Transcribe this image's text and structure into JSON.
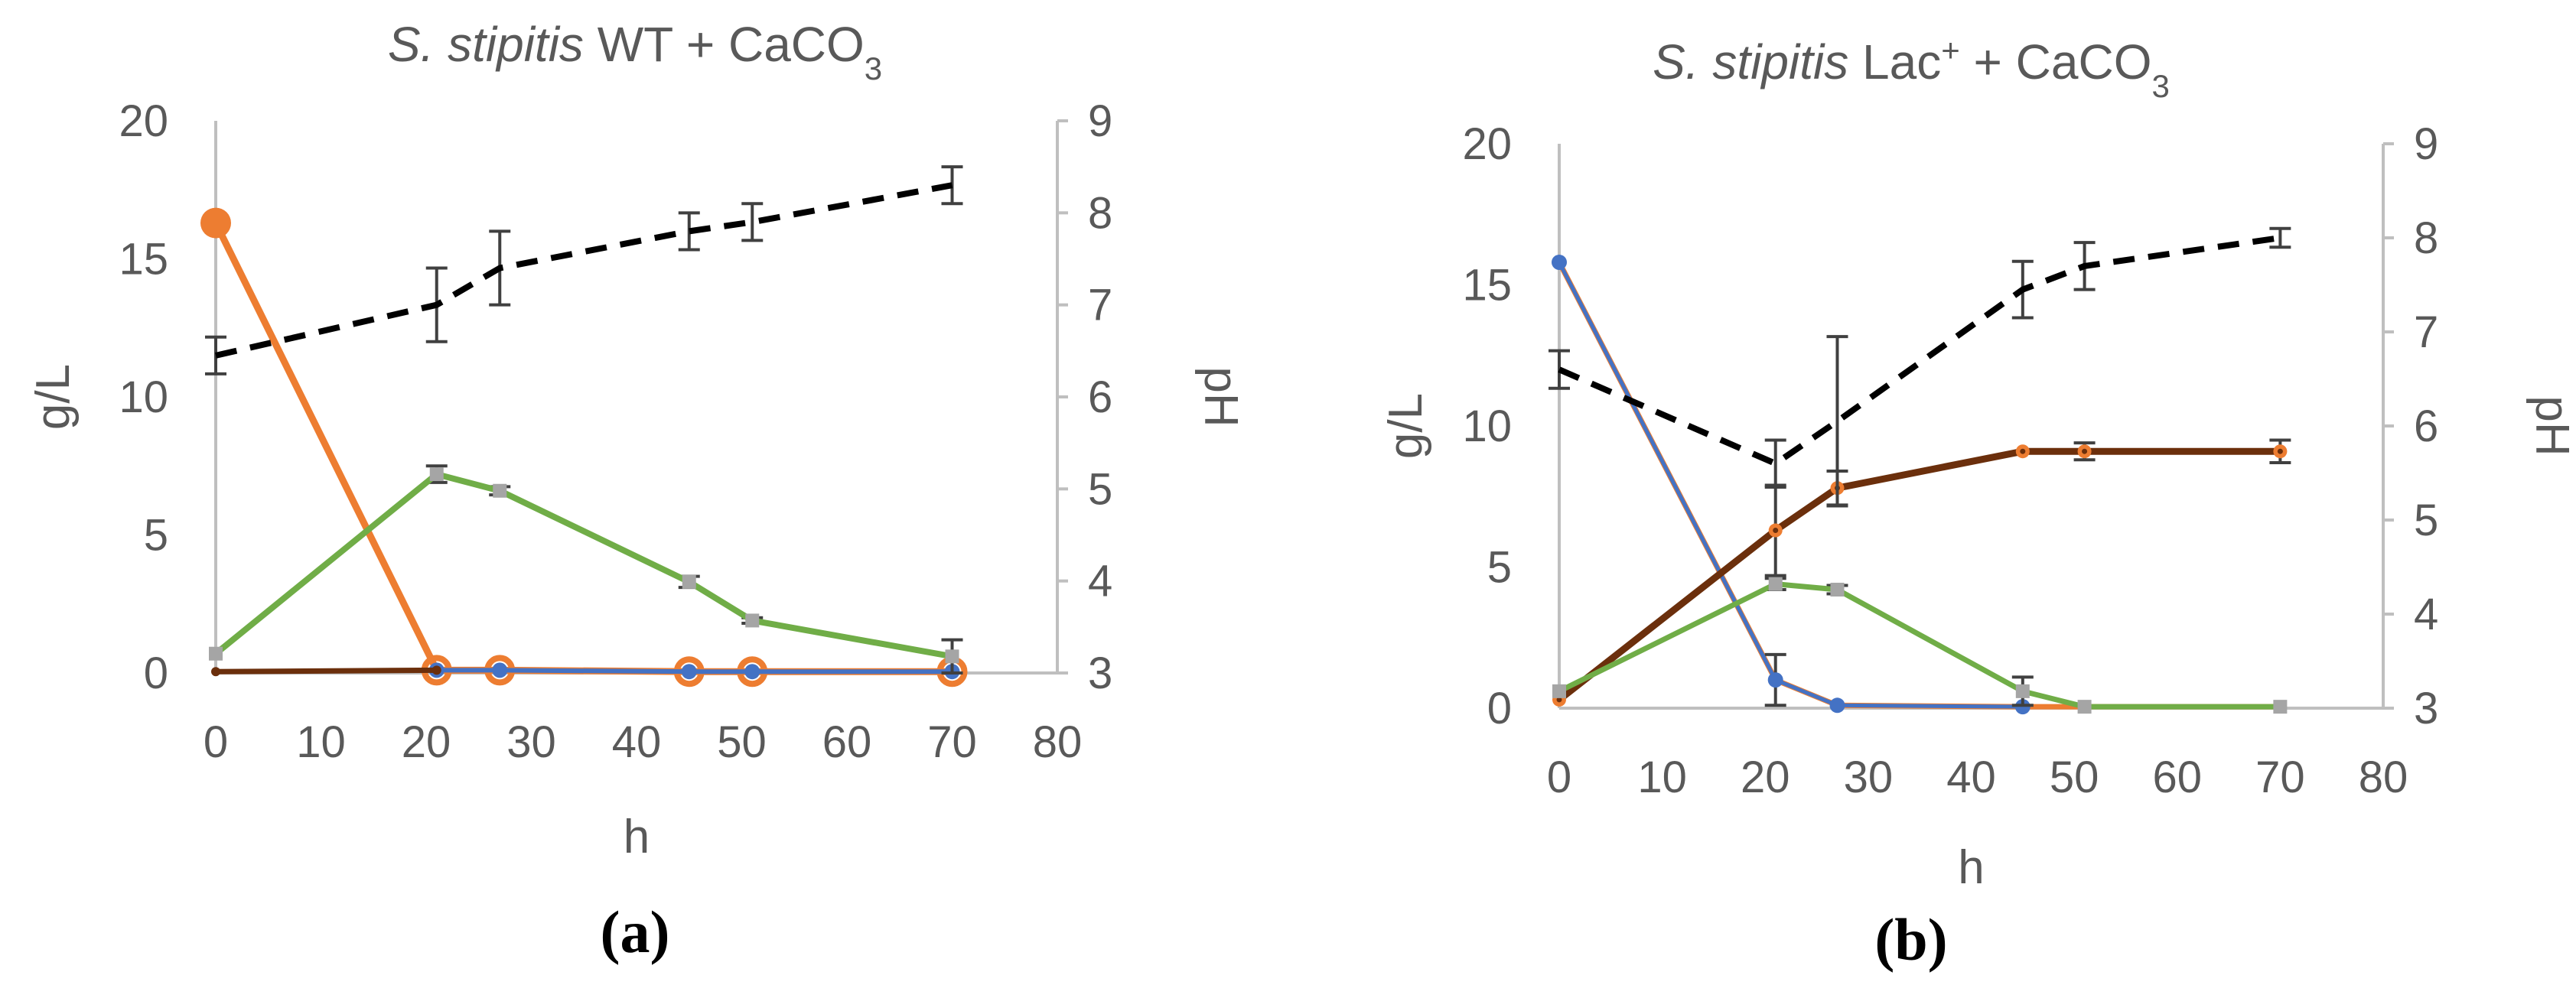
{
  "chart_data": [
    {
      "type": "line",
      "panel_label": "(a)",
      "title": {
        "italic": "S. stipitis",
        "rest": " WT + CaCO",
        "subscript": "3"
      },
      "xlabel": "h",
      "ylabel": "g/L",
      "y2label": "pH",
      "xlim": [
        0,
        80
      ],
      "ylim": [
        0,
        20
      ],
      "y2lim": [
        3,
        9
      ],
      "xticks": [
        "0",
        "10",
        "20",
        "30",
        "40",
        "50",
        "60",
        "70",
        "80"
      ],
      "yticks": [
        "0",
        "5",
        "10",
        "15",
        "20"
      ],
      "y2ticks": [
        "3",
        "4",
        "5",
        "6",
        "7",
        "8",
        "9"
      ],
      "series": [
        {
          "name": "orange",
          "axis": "left",
          "color": "#ED7D31",
          "width": 9,
          "marker": "big-circle",
          "x": [
            0,
            21,
            27,
            45,
            51,
            70
          ],
          "y": [
            16.3,
            0.1,
            0.1,
            0.05,
            0.05,
            0.05
          ]
        },
        {
          "name": "blue",
          "axis": "left",
          "color": "#4472C4",
          "width": 6,
          "marker": "circle",
          "x": [
            21,
            27,
            45,
            51,
            70
          ],
          "y": [
            0.1,
            0.1,
            0.05,
            0.05,
            0.05
          ]
        },
        {
          "name": "brown",
          "axis": "left",
          "color": "#6B2F0C",
          "width": 7,
          "marker": "small-circle",
          "x": [
            0,
            21
          ],
          "y": [
            0.05,
            0.1
          ]
        },
        {
          "name": "green",
          "axis": "left",
          "color": "#70AD47",
          "width": 8,
          "marker": "square",
          "x": [
            0,
            21,
            27,
            45,
            51,
            70
          ],
          "y": [
            0.7,
            7.2,
            6.6,
            3.3,
            1.9,
            0.6
          ],
          "err": [
            0,
            0.3,
            0.15,
            0.2,
            0.1,
            0.6
          ]
        },
        {
          "name": "pH",
          "axis": "right",
          "color": "#000000",
          "width": 8,
          "dash": "28,18",
          "marker": "none",
          "x": [
            0,
            21,
            27,
            45,
            51,
            70
          ],
          "y": [
            6.45,
            7.0,
            7.4,
            7.8,
            7.9,
            8.3
          ],
          "err": [
            0.2,
            0.4,
            0.4,
            0.2,
            0.2,
            0.2
          ]
        }
      ]
    },
    {
      "type": "line",
      "panel_label": "(b)",
      "title": {
        "italic": "S. stipitis",
        "rest": " Lac",
        "superscript": "+",
        "rest2": " + CaCO",
        "subscript": "3"
      },
      "xlabel": "h",
      "ylabel": "g/L",
      "y2label": "pH",
      "xlim": [
        0,
        80
      ],
      "ylim": [
        0,
        20
      ],
      "y2lim": [
        3,
        9
      ],
      "xticks": [
        "0",
        "10",
        "20",
        "30",
        "40",
        "50",
        "60",
        "70",
        "80"
      ],
      "yticks": [
        "0",
        "5",
        "10",
        "15",
        "20"
      ],
      "y2ticks": [
        "3",
        "4",
        "5",
        "6",
        "7",
        "8",
        "9"
      ],
      "series": [
        {
          "name": "orange",
          "axis": "left",
          "color": "#ED7D31",
          "width": 7,
          "marker": "none",
          "x": [
            0,
            21,
            27,
            45,
            51,
            70
          ],
          "y": [
            15.8,
            1.0,
            0.1,
            0.05,
            0.05,
            0.05
          ]
        },
        {
          "name": "blue",
          "axis": "left",
          "color": "#4472C4",
          "width": 5,
          "marker": "circle",
          "x": [
            0,
            21,
            27,
            45
          ],
          "y": [
            15.8,
            1.0,
            0.1,
            0.05
          ],
          "err": [
            0,
            0.9,
            0,
            0
          ]
        },
        {
          "name": "brown",
          "axis": "left",
          "color": "#6B2F0C",
          "width": 9,
          "marker": "orange-dot",
          "x": [
            0,
            21,
            27,
            45,
            51,
            70
          ],
          "y": [
            0.3,
            6.3,
            7.8,
            9.1,
            9.1,
            9.1
          ],
          "err": [
            0,
            1.6,
            0.6,
            0,
            0.3,
            0.4
          ]
        },
        {
          "name": "green",
          "axis": "left",
          "color": "#70AD47",
          "width": 7,
          "marker": "square",
          "x": [
            0,
            21,
            27,
            45,
            51,
            70
          ],
          "y": [
            0.6,
            4.4,
            4.2,
            0.6,
            0.05,
            0.05
          ],
          "err": [
            0,
            0.2,
            0.15,
            0.5,
            0,
            0
          ]
        },
        {
          "name": "pH",
          "axis": "right",
          "color": "#000000",
          "width": 8,
          "dash": "28,18",
          "marker": "none",
          "x": [
            0,
            21,
            27,
            45,
            51,
            70
          ],
          "y": [
            6.6,
            5.6,
            6.05,
            7.45,
            7.7,
            8.0
          ],
          "err": [
            0.2,
            0.25,
            0.9,
            0.3,
            0.25,
            0.1
          ]
        }
      ]
    }
  ]
}
